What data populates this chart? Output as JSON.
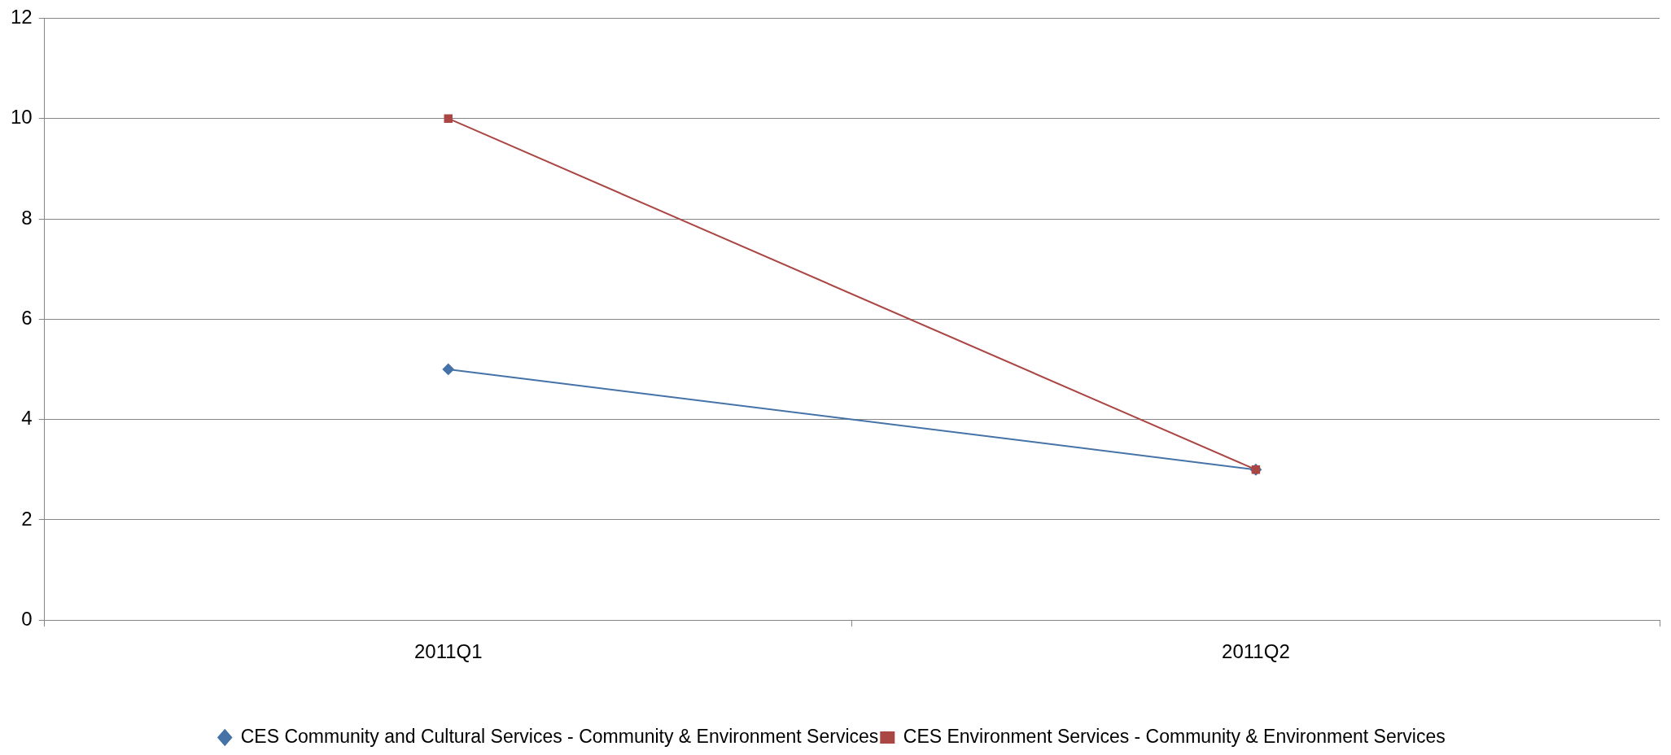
{
  "chart_data": {
    "type": "line",
    "categories": [
      "2011Q1",
      "2011Q2"
    ],
    "series": [
      {
        "name": "CES Community and Cultural Services - Community & Environment Services",
        "color": "#4572a7",
        "values": [
          5,
          3
        ],
        "marker": "diamond"
      },
      {
        "name": "CES Environment Services - Community & Environment Services",
        "color": "#aa4643",
        "values": [
          10,
          3
        ],
        "marker": "square"
      }
    ],
    "ylim": [
      0,
      12
    ],
    "yticks": [
      0,
      2,
      4,
      6,
      8,
      10,
      12
    ],
    "grid": "y",
    "legend": "bottom",
    "line_style": "solid"
  }
}
